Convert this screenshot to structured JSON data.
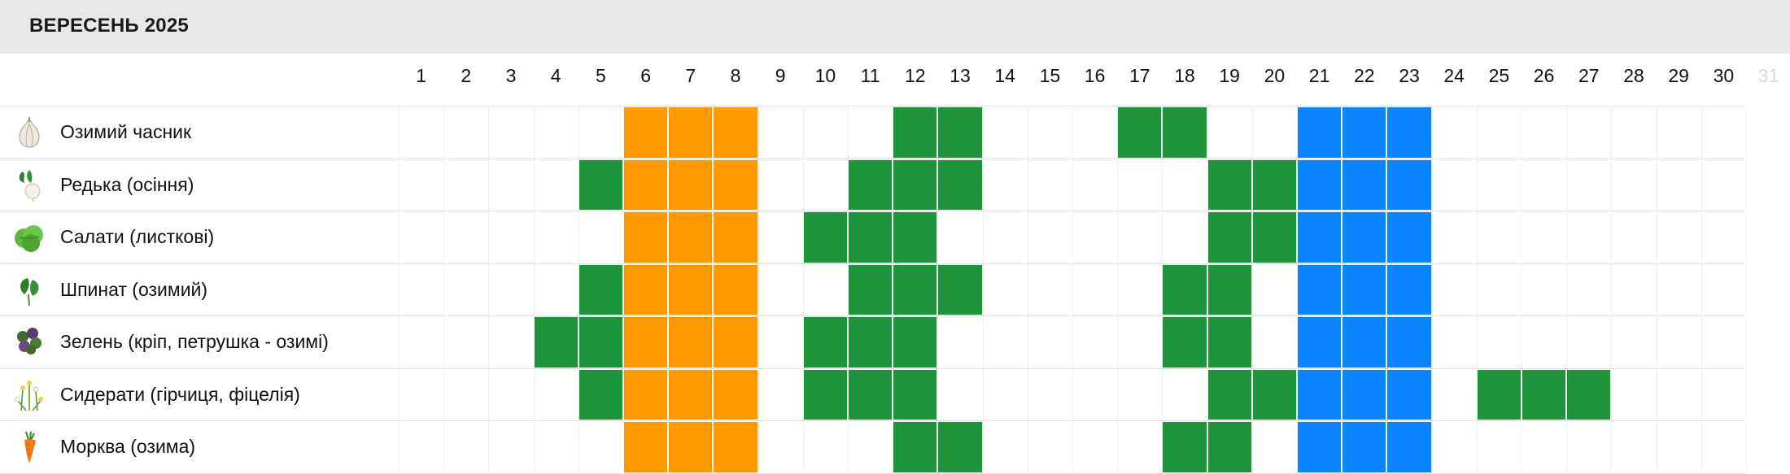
{
  "header": {
    "title": "ВЕРЕСЕНЬ 2025"
  },
  "days": [
    "1",
    "2",
    "3",
    "4",
    "5",
    "6",
    "7",
    "8",
    "9",
    "10",
    "11",
    "12",
    "13",
    "14",
    "15",
    "16",
    "17",
    "18",
    "19",
    "20",
    "21",
    "22",
    "23",
    "24",
    "25",
    "26",
    "27",
    "28",
    "29",
    "30",
    "31"
  ],
  "disabled_days": [
    31
  ],
  "colors": {
    "orange": "#FF9900",
    "green": "#1E943C",
    "blue": "#0A84FF"
  },
  "crops": [
    {
      "name": "Озимий часник",
      "icon": "garlic-icon",
      "marks": {
        "orange": [
          6,
          7,
          8
        ],
        "green": [
          12,
          13,
          17,
          18
        ],
        "blue": [
          21,
          22,
          23
        ]
      }
    },
    {
      "name": "Редька (осіння)",
      "icon": "radish-icon",
      "marks": {
        "orange": [
          6,
          7,
          8
        ],
        "green": [
          5,
          11,
          12,
          13,
          19,
          20
        ],
        "blue": [
          21,
          22,
          23
        ]
      }
    },
    {
      "name": "Салати (листкові)",
      "icon": "lettuce-icon",
      "marks": {
        "orange": [
          6,
          7,
          8
        ],
        "green": [
          10,
          11,
          12,
          19,
          20
        ],
        "blue": [
          21,
          22,
          23
        ]
      }
    },
    {
      "name": "Шпинат (озимий)",
      "icon": "spinach-icon",
      "marks": {
        "orange": [
          6,
          7,
          8
        ],
        "green": [
          5,
          11,
          12,
          13,
          18,
          19
        ],
        "blue": [
          21,
          22,
          23
        ]
      }
    },
    {
      "name": "Зелень (кріп, петрушка - озимі)",
      "icon": "herbs-icon",
      "marks": {
        "orange": [
          6,
          7,
          8
        ],
        "green": [
          4,
          5,
          10,
          11,
          12,
          18,
          19
        ],
        "blue": [
          21,
          22,
          23
        ]
      }
    },
    {
      "name": "Сидерати (гірчиця, фіцелія)",
      "icon": "cover-crop-flowers-icon",
      "marks": {
        "orange": [
          6,
          7,
          8
        ],
        "green": [
          5,
          10,
          11,
          12,
          19,
          20,
          25,
          26,
          27
        ],
        "blue": [
          21,
          22,
          23
        ]
      }
    },
    {
      "name": "Морква (озима)",
      "icon": "carrot-icon",
      "marks": {
        "orange": [
          6,
          7,
          8
        ],
        "green": [
          12,
          13,
          18,
          19
        ],
        "blue": [
          21,
          22,
          23
        ]
      }
    }
  ]
}
